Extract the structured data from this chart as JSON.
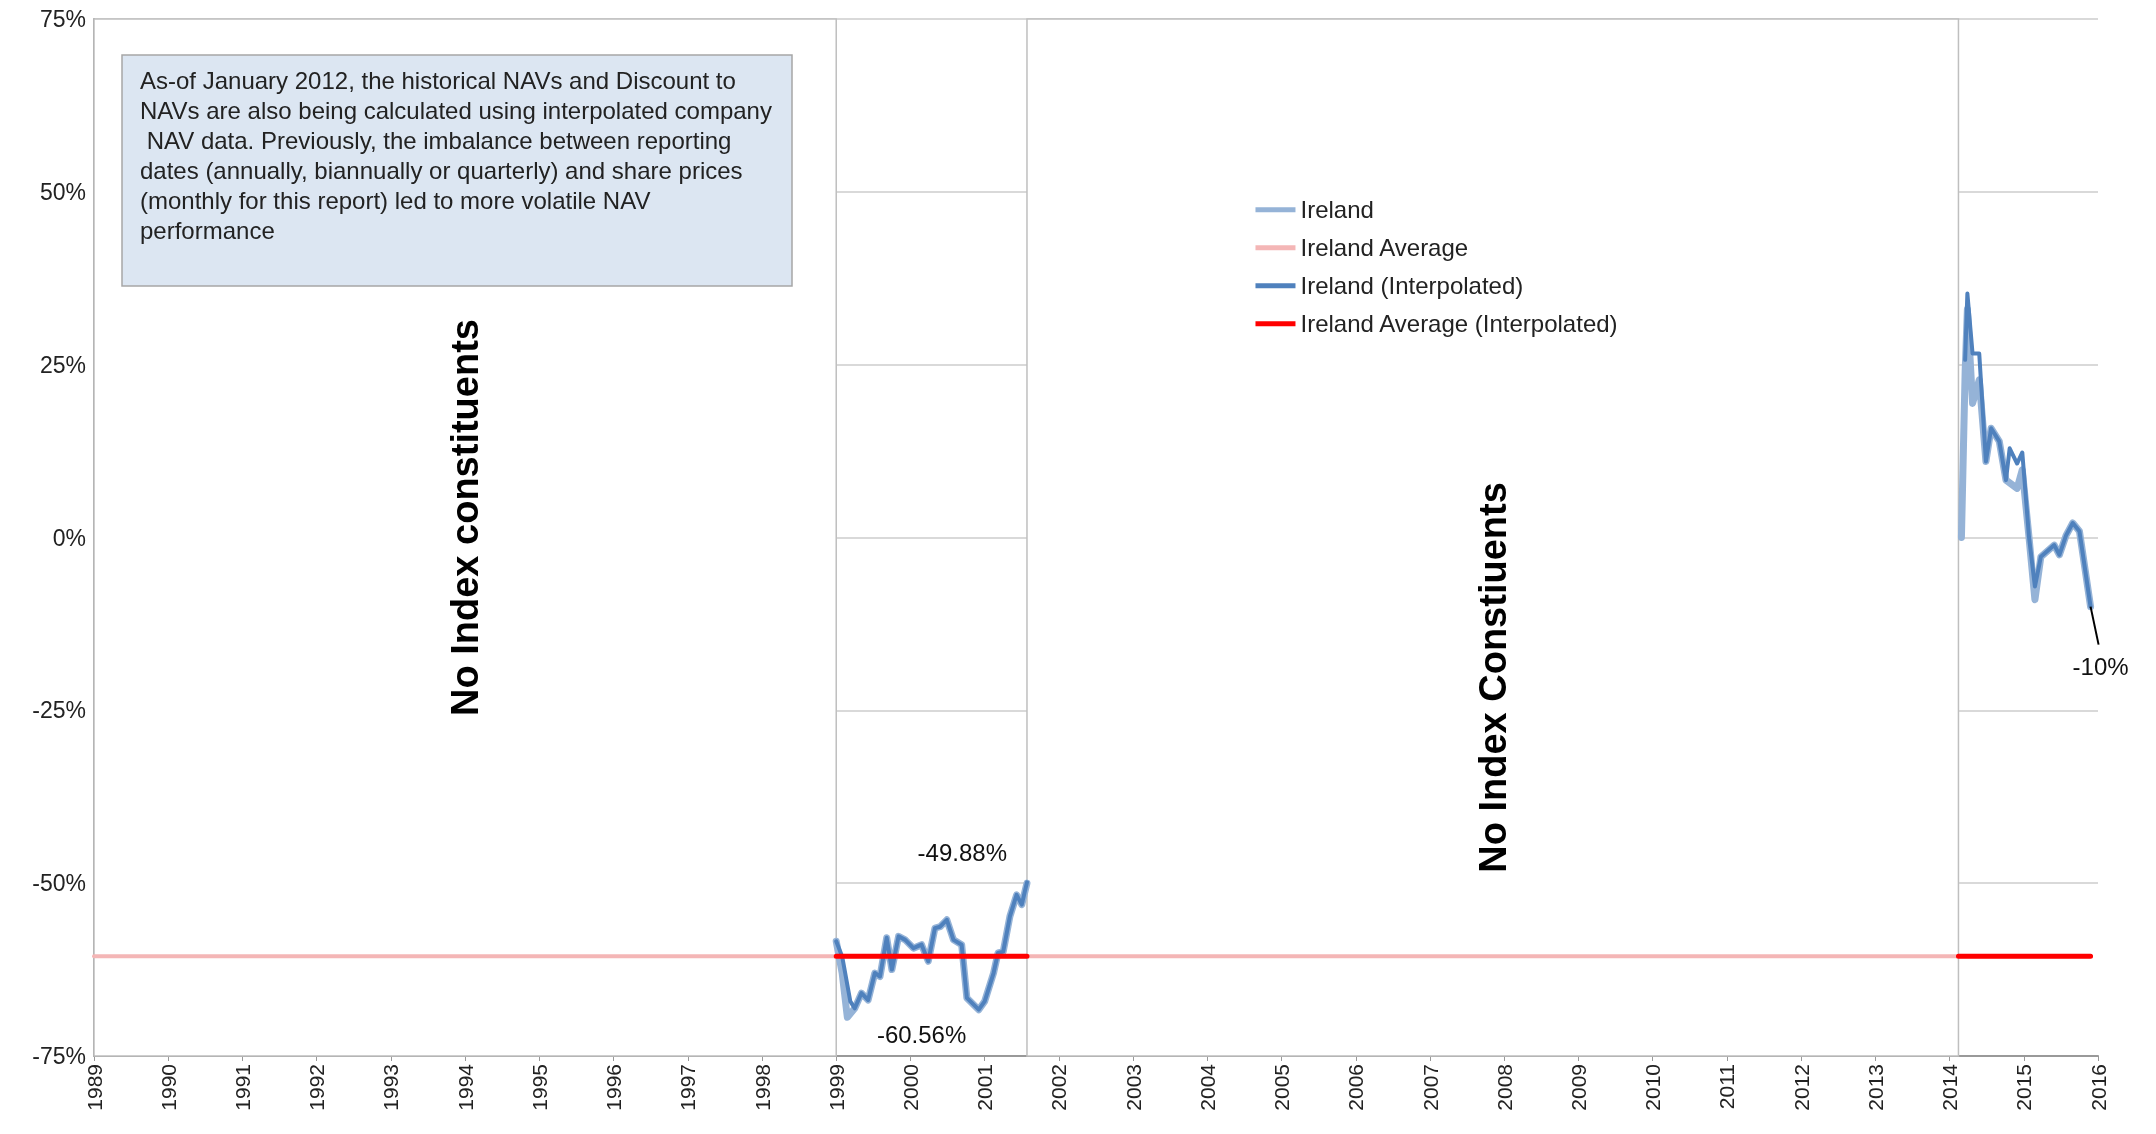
{
  "chart_data": {
    "type": "line",
    "xlim": [
      1989,
      2016
    ],
    "xticks": [
      1989,
      1990,
      1991,
      1992,
      1993,
      1994,
      1995,
      1996,
      1997,
      1998,
      1999,
      2000,
      2001,
      2002,
      2003,
      2004,
      2005,
      2006,
      2007,
      2008,
      2009,
      2010,
      2011,
      2012,
      2013,
      2014,
      2015,
      2016
    ],
    "ylim": [
      -75,
      75
    ],
    "yticks": [
      {
        "value": -75,
        "label": "-75%"
      },
      {
        "value": -50,
        "label": "-50%"
      },
      {
        "value": -25,
        "label": "-25%"
      },
      {
        "value": 0,
        "label": "0%"
      },
      {
        "value": 25,
        "label": "25%"
      },
      {
        "value": 50,
        "label": "50%"
      },
      {
        "value": 75,
        "label": "75%"
      }
    ],
    "grid": "y",
    "legend": "top",
    "marker": "none",
    "line_style": "solid",
    "series": [
      {
        "name": "Ireland",
        "color": "#95b3d7",
        "x": [
          1999.0,
          1999.08,
          1999.15,
          1999.25,
          1999.34,
          1999.43,
          1999.52,
          1999.59,
          1999.68,
          1999.75,
          1999.84,
          1999.93,
          2000.04,
          2000.15,
          2000.24,
          2000.33,
          2000.4,
          2000.49,
          2000.58,
          2000.69,
          2000.76,
          2000.92,
          2001.0,
          2001.12,
          2001.18,
          2001.25,
          2001.34,
          2001.43,
          2001.5,
          2001.57,
          2008,
          2014.16,
          2014.21,
          2014.24,
          2014.31,
          2014.4,
          2014.49,
          2014.56,
          2014.67,
          2014.76,
          2014.91,
          2014.98,
          2015.07,
          2015.15,
          2015.23,
          2015.41,
          2015.48,
          2015.57,
          2015.66,
          2015.75,
          2015.9
        ],
        "values": [
          -58.4,
          -63.0,
          -69.4,
          -68.1,
          -65.9,
          -66.9,
          -63.0,
          -63.5,
          -57.9,
          -62.5,
          -57.7,
          -58.2,
          -59.4,
          -58.9,
          -61.3,
          -56.5,
          -56.3,
          -55.3,
          -58.2,
          -58.9,
          -66.6,
          -68.3,
          -67.1,
          -63.0,
          -60.1,
          -59.9,
          -54.8,
          -51.7,
          -53.1,
          -50.0,
          null,
          0,
          24,
          33,
          19.4,
          22.8,
          11.0,
          15.8,
          13.9,
          8.3,
          7.1,
          9.8,
          0.1,
          -9.0,
          -2.8,
          -1.1,
          -2.5,
          0.3,
          2.1,
          0.9,
          -10
        ]
      },
      {
        "name": "Ireland Average",
        "color": "#f4b6b6",
        "x": [
          1989,
          2015.9
        ],
        "values": [
          -60.56,
          -60.56
        ]
      },
      {
        "name": "Ireland (Interpolated)",
        "color": "#4f81bd",
        "x": [
          1999.0,
          1999.08,
          1999.19,
          1999.25,
          1999.34,
          1999.43,
          1999.52,
          1999.59,
          1999.68,
          1999.75,
          1999.84,
          1999.93,
          2000.04,
          2000.15,
          2000.24,
          2000.33,
          2000.4,
          2000.49,
          2000.58,
          2000.69,
          2000.76,
          2000.92,
          2001.0,
          2001.12,
          2001.18,
          2001.25,
          2001.34,
          2001.43,
          2001.5,
          2001.57,
          2008,
          2014.21,
          2014.24,
          2014.31,
          2014.4,
          2014.49,
          2014.56,
          2014.67,
          2014.76,
          2014.81,
          2014.91,
          2014.98,
          2015.07,
          2015.15,
          2015.23,
          2015.41,
          2015.48,
          2015.57,
          2015.66,
          2015.75,
          2015.9
        ],
        "values": [
          -58.4,
          -60.6,
          -67.1,
          -68.1,
          -65.9,
          -66.9,
          -63.0,
          -63.5,
          -57.9,
          -62.5,
          -57.7,
          -58.2,
          -59.4,
          -58.9,
          -61.3,
          -56.5,
          -56.3,
          -55.3,
          -58.2,
          -58.9,
          -66.6,
          -68.3,
          -67.1,
          -63.0,
          -60.1,
          -59.9,
          -54.8,
          -51.7,
          -53.1,
          -49.88,
          null,
          25.7,
          35.3,
          26.6,
          26.6,
          11.0,
          15.8,
          13.9,
          8.3,
          12.9,
          10.7,
          12.3,
          0.1,
          -7.1,
          -2.8,
          -1.1,
          -2.5,
          0.3,
          2.1,
          0.9,
          -10
        ]
      },
      {
        "name": "Ireland Average (Interpolated)",
        "color": "#ff0000",
        "x": [
          1999.0,
          2001.57,
          2008,
          2014.12,
          2015.9
        ],
        "values": [
          -60.56,
          -60.56,
          null,
          -60.56,
          -60.56
        ]
      }
    ],
    "bands": [
      {
        "axis": "x",
        "from": 1989,
        "to": 1999,
        "label": "No Index constituents",
        "color": "#ffffff"
      },
      {
        "axis": "x",
        "from": 2001.57,
        "to": 2014.12,
        "label": "No Index Constiuents",
        "color": "#ffffff"
      }
    ],
    "annotations": [
      "As-of January 2012, the historical NAVs and Discount to NAVs are also being calculated using interpolated company NAV data. Previously, the imbalance between reporting dates (annually, biannually or quarterly) and share prices (monthly for this report) led to more volatile NAV performance",
      {
        "text": "-49.88%",
        "x": 2001.57,
        "y": -49.88
      },
      {
        "text": "-60.56%",
        "x": 2000.15,
        "y": -60.56
      },
      {
        "text": "-10%",
        "x": 2015.9,
        "y": -10
      }
    ]
  }
}
